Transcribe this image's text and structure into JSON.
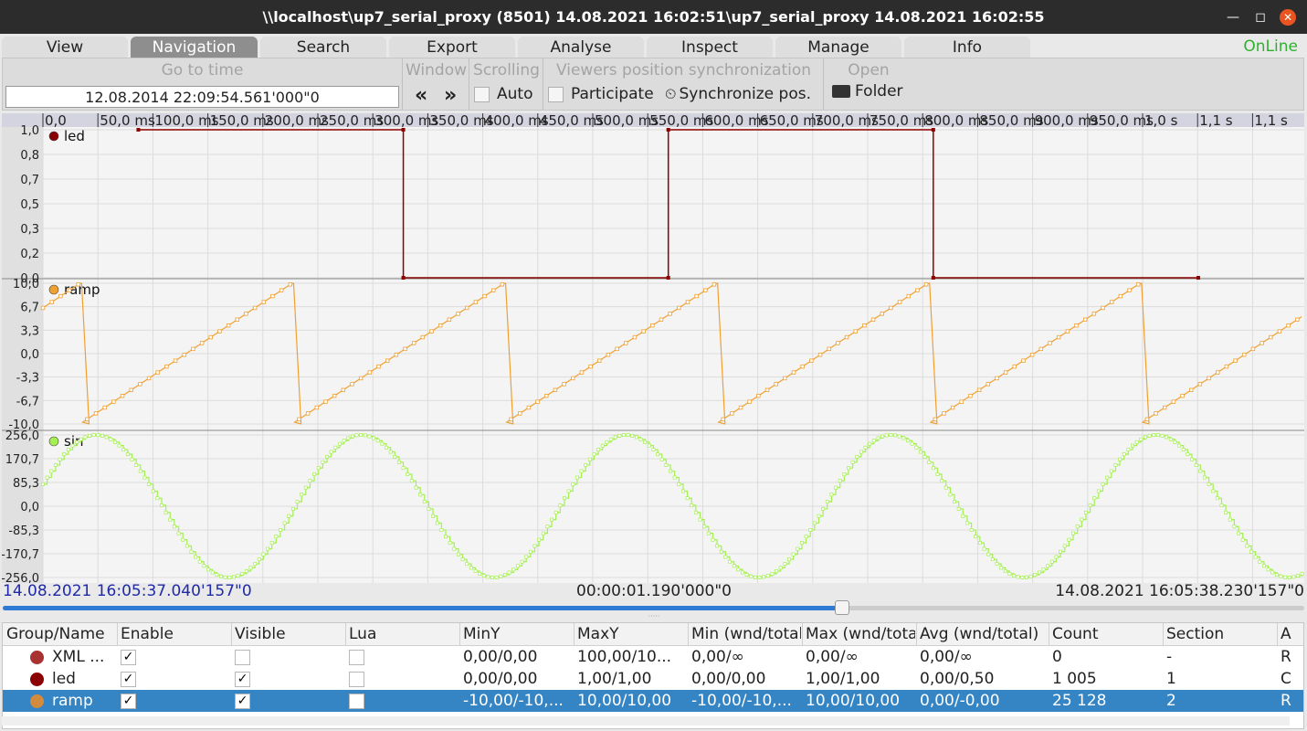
{
  "window": {
    "title": "\\\\localhost\\up7_serial_proxy (8501) 14.08.2021 16:02:51\\up7_serial_proxy 14.08.2021 16:02:55"
  },
  "tabs": [
    "View",
    "Navigation",
    "Search",
    "Export",
    "Analyse",
    "Inspect",
    "Manage",
    "Info"
  ],
  "active_tab": "Navigation",
  "status_online": "OnLine",
  "toolbar": {
    "goto_label": "Go to time",
    "goto_value": "12.08.2014 22:09:54.561'000\"0",
    "window_label": "Window",
    "prev_label": "«",
    "next_label": "»",
    "scrolling_label": "Scrolling",
    "auto_label": "Auto",
    "sync_group_label": "Viewers position synchronization",
    "participate_label": "Participate",
    "sync_button_label": "Synchronize pos.",
    "open_label": "Open",
    "folder_label": "Folder"
  },
  "chart_data": {
    "type": "line",
    "x_unit": "s",
    "xlim": [
      0,
      1.19
    ],
    "time_axis_ticks": [
      "0,0",
      "50,0 ms",
      "100,0 ms",
      "150,0 ms",
      "200,0 ms",
      "250,0 ms",
      "300,0 ms",
      "350,0 ms",
      "400,0 ms",
      "450,0 ms",
      "500,0 ms",
      "550,0 ms",
      "600,0 ms",
      "650,0 ms",
      "700,0 ms",
      "750,0 ms",
      "800,0 ms",
      "850,0 ms",
      "900,0 ms",
      "950,0 ms",
      "1,0 s",
      "1,1 s",
      "1,1 s"
    ],
    "panels": [
      {
        "name": "led",
        "color": "#8b0000",
        "ylim": [
          0,
          1
        ],
        "yticks": [
          "1,0",
          "0,8",
          "0,7",
          "0,5",
          "0,3",
          "0,2",
          "0,0"
        ],
        "x": [
          0.09,
          0.34,
          0.34,
          0.59,
          0.59,
          0.84,
          0.84,
          1.09
        ],
        "y": [
          1,
          1,
          0,
          0,
          1,
          1,
          0,
          0
        ]
      },
      {
        "name": "ramp",
        "color": "#f0a030",
        "ylim": [
          -10,
          10
        ],
        "yticks": [
          "10,0",
          "6,7",
          "3,3",
          "0,0",
          "-3,3",
          "-6,7",
          "-10,0"
        ],
        "period_s": 0.2,
        "phase_s": 0.035
      },
      {
        "name": "sin",
        "color": "#a4f050",
        "ylim": [
          -256,
          256
        ],
        "yticks": [
          "256,0",
          "170,7",
          "85,3",
          "0,0",
          "-85,3",
          "-170,7",
          "-256,0"
        ],
        "period_s": 0.25,
        "amplitude": 256,
        "peak_at_s": 0.05
      }
    ]
  },
  "timeline": {
    "start": "14.08.2021 16:05:37.040'157\"0",
    "duration": "00:00:01.190'000\"0",
    "end": "14.08.2021 16:05:38.230'157\"0",
    "position": 0.645
  },
  "table": {
    "columns": [
      "Group/Name",
      "Enable",
      "Visible",
      "Lua",
      "MinY",
      "MaxY",
      "Min (wnd/total)",
      "Max (wnd/total)",
      "Avg (wnd/total)",
      "Count",
      "Section",
      "A"
    ],
    "rows": [
      {
        "color": "#a83232",
        "name": "XML ...",
        "enable": true,
        "visible": false,
        "lua": false,
        "miny": "0,00/0,00",
        "maxy": "100,00/10...",
        "min": "0,00/∞",
        "max": "0,00/∞",
        "avg": "0,00/∞",
        "count": "0",
        "section": "-",
        "a": "R"
      },
      {
        "color": "#8b0000",
        "name": "led",
        "enable": true,
        "visible": true,
        "lua": false,
        "miny": "0,00/0,00",
        "maxy": "1,00/1,00",
        "min": "0,00/0,00",
        "max": "1,00/1,00",
        "avg": "0,00/0,50",
        "count": "1 005",
        "section": "1",
        "a": "C"
      },
      {
        "color": "#d28a3c",
        "name": "ramp",
        "enable": true,
        "visible": true,
        "lua": false,
        "miny": "-10,00/-10,...",
        "maxy": "10,00/10,00",
        "min": "-10,00/-10,...",
        "max": "10,00/10,00",
        "avg": "0,00/-0,00",
        "count": "25 128",
        "section": "2",
        "a": "R"
      }
    ],
    "selected_row": 2
  }
}
